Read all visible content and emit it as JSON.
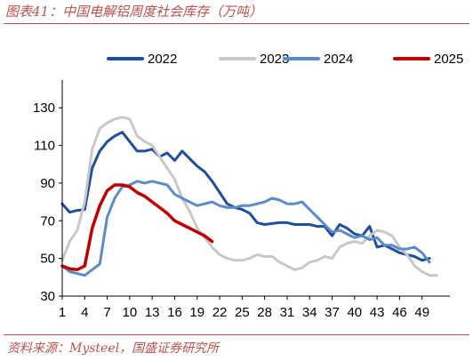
{
  "title": "图表41：中国电解铝周度社会库存（万吨）",
  "source": "资料来源：Mysteel，国盛证券研究所",
  "chart_data": {
    "type": "line",
    "title": "图表41：中国电解铝周度社会库存（万吨）",
    "xlabel": "",
    "ylabel": "",
    "ylim": [
      30,
      140
    ],
    "xlim": [
      1,
      52
    ],
    "yticks": [
      30,
      50,
      70,
      90,
      110,
      130
    ],
    "xticks": [
      1,
      4,
      7,
      10,
      13,
      16,
      19,
      22,
      25,
      28,
      31,
      34,
      37,
      40,
      43,
      46,
      49
    ],
    "grid": false,
    "legend_position": "top",
    "series": [
      {
        "name": "2022",
        "color": "#1f4e9c",
        "values": [
          79,
          74.5,
          75.5,
          76,
          98,
          107,
          112,
          115,
          117,
          112,
          107,
          107,
          108,
          104,
          106,
          102,
          107,
          103,
          99,
          96,
          91,
          85,
          79,
          77,
          76,
          74,
          69,
          68,
          68.5,
          69,
          69,
          68,
          68,
          68,
          67,
          67,
          62,
          68,
          66,
          63,
          62,
          67,
          56,
          57,
          55,
          53,
          52,
          51,
          49,
          50,
          null
        ]
      },
      {
        "name": "2023",
        "color": "#c8c8c8",
        "values": [
          49,
          59,
          65,
          80,
          108,
          119,
          122,
          124,
          125,
          124,
          115,
          112,
          110,
          104,
          98,
          92,
          82,
          75,
          66,
          61,
          56,
          52,
          50,
          49,
          49,
          50,
          52,
          51,
          51,
          48,
          46,
          44,
          45,
          48,
          49,
          51,
          50,
          56,
          58,
          59,
          58,
          62,
          65,
          64,
          62,
          56,
          52,
          46,
          43,
          41,
          41
        ]
      },
      {
        "name": "2024",
        "color": "#5b8cc8",
        "values": [
          46,
          43,
          42,
          41,
          44,
          47,
          72,
          82,
          88,
          89,
          91,
          90,
          91,
          90,
          89,
          84,
          82,
          80,
          78,
          79,
          80,
          78,
          77,
          77,
          78,
          78,
          79,
          80,
          82,
          81,
          79,
          79,
          80,
          76,
          72,
          68,
          64,
          65,
          63,
          61,
          62,
          60,
          61,
          57,
          57,
          55,
          55,
          56,
          53,
          48,
          null
        ]
      },
      {
        "name": "2025",
        "color": "#c00000",
        "values": [
          46,
          44.5,
          44,
          46,
          66,
          78,
          86,
          89,
          89,
          88,
          85,
          83,
          80,
          77,
          74,
          70,
          68,
          66,
          64,
          62,
          59,
          null,
          null,
          null,
          null,
          null,
          null,
          null,
          null,
          null,
          null,
          null,
          null,
          null,
          null,
          null,
          null,
          null,
          null,
          null,
          null,
          null,
          null,
          null,
          null,
          null,
          null,
          null,
          null,
          null,
          null
        ]
      }
    ]
  }
}
